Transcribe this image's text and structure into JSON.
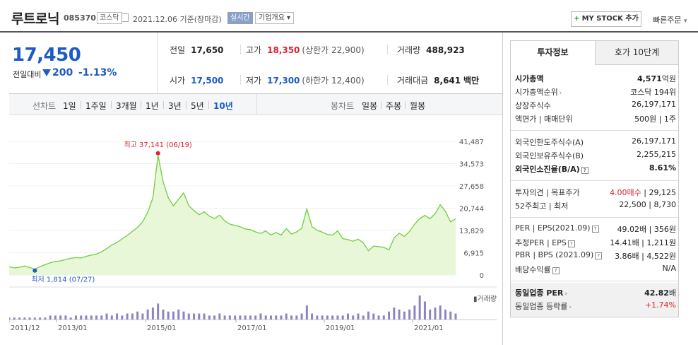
{
  "header": {
    "name": "루트로닉",
    "code": "085370",
    "market": "코스닥",
    "date": "2021.12.06  기준(장마감)",
    "realtime": "실시간",
    "company_overview": "기업개요",
    "my_stock": "MY STOCK 추가",
    "quick_order": "빠른주문"
  },
  "price": {
    "current": "17,450",
    "diff_label": "전일대비",
    "diff": "200",
    "pct": "-1.13%"
  },
  "stats": {
    "prev_label": "전일",
    "prev": "17,650",
    "high_label": "고가",
    "high": "18,350",
    "upper_limit": "(상한가 22,900)",
    "volume_label": "거래량",
    "volume": "488,923",
    "open_label": "시가",
    "open": "17,500",
    "low_label": "저가",
    "low": "17,300",
    "lower_limit": "(하한가 12,400)",
    "amount_label": "거래대금",
    "amount": "8,641",
    "amount_unit": "백만"
  },
  "periods": {
    "line_label": "선차트",
    "items": [
      "1일",
      "1주일",
      "3개월",
      "1년",
      "3년",
      "5년",
      "10년"
    ],
    "selected": "10년",
    "candle_label": "봉차트",
    "candles": [
      "일봉",
      "주봉",
      "월봉"
    ]
  },
  "chart_data": {
    "type": "area",
    "max_annotation": "최고  37,141  (06/19)",
    "min_annotation": "최저  1,814  (07/27)",
    "y_ticks": [
      "41,487",
      "34,573",
      "27,658",
      "20,744",
      "13,829",
      "6,915",
      "0"
    ],
    "ylim": [
      0,
      41487
    ],
    "x_ticks": [
      "2011/12",
      "2013/01",
      "2015/01",
      "2017/01",
      "2019/01",
      "2021/01"
    ],
    "volume_label": "거래량",
    "series": [
      {
        "values": [
          2600,
          2200,
          2400,
          2800,
          2300,
          1814,
          2600,
          3200,
          3800,
          4200,
          4400,
          4800,
          5200,
          5400,
          5300,
          5800,
          6200,
          6500,
          7200,
          8200,
          9300,
          10100,
          11200,
          12300,
          13500,
          14800,
          16500,
          19500,
          24000,
          37141,
          29000,
          24000,
          21500,
          23500,
          25500,
          21500,
          20000,
          18700,
          19600,
          18300,
          17500,
          18600,
          16800,
          15800,
          15400,
          15000,
          14300,
          14100,
          13400,
          12900,
          13700,
          12400,
          13200,
          12400,
          14400,
          12700,
          13400,
          14500,
          20500,
          15000,
          13900,
          13300,
          12600,
          12400,
          13700,
          11300,
          11000,
          10500,
          11100,
          10000,
          7500,
          9000,
          8800,
          8600,
          7800,
          11500,
          13000,
          12000,
          13500,
          15800,
          17500,
          18500,
          17500,
          19000,
          21800,
          19800,
          16500,
          17450
        ]
      }
    ],
    "volume": [
      1,
      1,
      1,
      1,
      1,
      1,
      1,
      1,
      2,
      2,
      2,
      2,
      1,
      2,
      2,
      2,
      2,
      2,
      2,
      3,
      2,
      3,
      2,
      3,
      3,
      4,
      3,
      5,
      6,
      8,
      5,
      4,
      4,
      5,
      4,
      3,
      3,
      3,
      3,
      2,
      2,
      3,
      2,
      2,
      2,
      2,
      2,
      2,
      2,
      3,
      2,
      2,
      2,
      2,
      3,
      2,
      2,
      3,
      7,
      3,
      2,
      2,
      2,
      2,
      2,
      2,
      3,
      2,
      3,
      2,
      4,
      3,
      2,
      2,
      4,
      6,
      5,
      4,
      5,
      7,
      12,
      9,
      5,
      6,
      7,
      5,
      4,
      3
    ]
  },
  "right_panel": {
    "tab_info": "투자정보",
    "tab_quote": "호가 10단계",
    "rows": [
      {
        "k": "시가총액",
        "v": "4,571",
        "u": "억원"
      },
      {
        "k": "시가총액순위",
        "v": "코스닥 194위"
      },
      {
        "k": "상장주식수",
        "v": "26,197,171"
      },
      {
        "k": "액면가 | 매매단위",
        "v": "500원 | 1주"
      },
      {
        "k": "외국인한도주식수(A)",
        "v": "26,197,171"
      },
      {
        "k": "외국인보유주식수(B)",
        "v": "2,255,215"
      },
      {
        "k": "외국인소진율(B/A)",
        "v": "8.61%"
      },
      {
        "k": "투자의견  |  목표주가",
        "v_red": "4.00매수",
        "v": " | 29,125"
      },
      {
        "k": "52주최고  |  최저",
        "v": "22,500 | 8,730"
      },
      {
        "k": "PER  |  EPS(2021.09)",
        "v": "49.02배 | 356원"
      },
      {
        "k": "추정PER  |  EPS",
        "v": "14.41배 | 1,211원"
      },
      {
        "k": "PBR  |  BPS (2021.09)",
        "v": "3.86배 | 4,522원"
      },
      {
        "k": "배당수익률",
        "v": "N/A"
      },
      {
        "k": "동일업종 PER",
        "v": "42.82",
        "u": "배"
      },
      {
        "k": "동일업종 등락률",
        "v": "+1.74%"
      }
    ]
  },
  "colors": {
    "up": "#e0202a",
    "down": "#1e5bc6",
    "area_line": "#6fcf3a",
    "area_fill": "#e7f7d8",
    "volume": "#8d84c6"
  }
}
